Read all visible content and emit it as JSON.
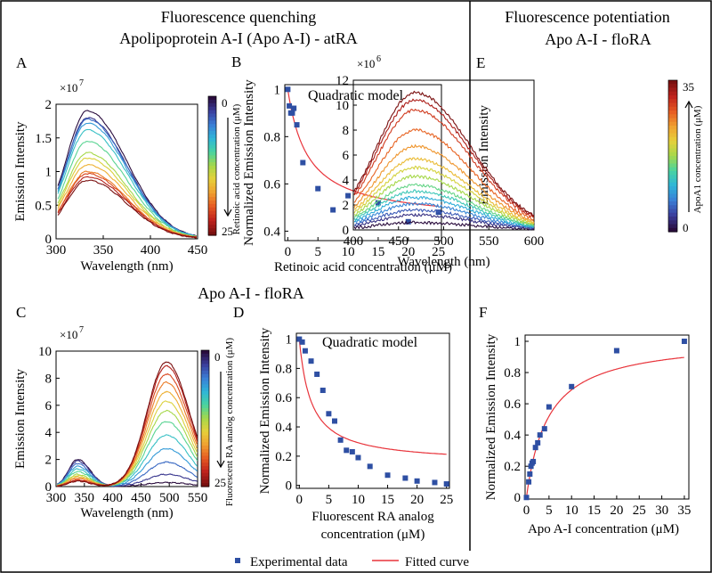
{
  "headers": {
    "left_line1": "Fluorescence quenching",
    "left_line2": "Apolipoprotein A-I (Apo A-I) - atRA",
    "right_line1": "Fluorescence potentiation",
    "right_line2": "Apo A-I - floRA",
    "middle": "Apo A-I - floRA"
  },
  "legend": {
    "experimental": "Experimental data",
    "fitted": "Fitted curve"
  },
  "colors": {
    "experimental": "#2e4fa3",
    "fitted": "#e8333a",
    "colormap": [
      "#2a0c3d",
      "#3b3f9e",
      "#3b7fd6",
      "#2fb6d8",
      "#49d3a0",
      "#a6d84a",
      "#e6d03a",
      "#f0a030",
      "#e65a22",
      "#c0231d",
      "#7a1010"
    ]
  },
  "chart_data": [
    {
      "id": "A",
      "type": "line",
      "panel_label": "A",
      "xlabel": "Wavelength (nm)",
      "ylabel": "Emission Intensity",
      "multiplier": "×10",
      "multiplier_exp": "7",
      "xlim": [
        300,
        450
      ],
      "ylim": [
        0,
        2
      ],
      "xticks": [
        300,
        350,
        400,
        450
      ],
      "yticks": [
        0,
        0.5,
        1,
        1.5,
        2
      ],
      "ytick_labels": [
        "0",
        "0.5",
        "1",
        "1.5",
        "2"
      ],
      "peak_x": 333,
      "peaks": [
        1.9,
        1.8,
        1.78,
        1.72,
        1.62,
        1.45,
        1.28,
        1.2,
        1.1,
        1.0,
        0.97,
        0.92,
        0.87
      ],
      "colorbar": {
        "label": "Retinoic acid concentration (μM)",
        "min_label": "0",
        "max_label": "25",
        "arrow": "down"
      }
    },
    {
      "id": "B",
      "type": "scatter",
      "panel_label": "B",
      "title": "Quadratic model",
      "xlabel": "Retinoic acid concentration (μM)",
      "ylabel": "Normalized Emission Intensity",
      "xlim": [
        -0.5,
        25.5
      ],
      "ylim": [
        0.36,
        1.02
      ],
      "xticks": [
        0,
        5,
        10,
        15,
        20,
        25
      ],
      "yticks": [
        0.4,
        0.6,
        0.8,
        1
      ],
      "ytick_labels": [
        "0.4",
        "0.6",
        "0.8",
        "1"
      ],
      "x": [
        0,
        0.25,
        0.5,
        0.75,
        1,
        1.5,
        2.5,
        5,
        7.5,
        10,
        15,
        20,
        25
      ],
      "y": [
        1.0,
        0.93,
        0.9,
        0.9,
        0.92,
        0.85,
        0.69,
        0.58,
        0.49,
        0.55,
        0.52,
        0.44,
        0.48
      ],
      "fit": {
        "ymin": 0.44,
        "k": 3.3
      }
    },
    {
      "id": "C",
      "type": "line",
      "panel_label": "C",
      "xlabel": "Wavelength (nm)",
      "ylabel": "Emission Intensity",
      "multiplier": "×10",
      "multiplier_exp": "7",
      "xlim": [
        300,
        550
      ],
      "ylim": [
        0,
        10
      ],
      "xticks": [
        300,
        350,
        400,
        450,
        500,
        550
      ],
      "yticks": [
        0,
        2,
        4,
        6,
        8,
        10
      ],
      "ytick_labels": [
        "0",
        "2",
        "4",
        "6",
        "8",
        "10"
      ],
      "peak1_x": 338,
      "peak2_x": 495,
      "peaks1": [
        2.0,
        1.9,
        1.7,
        1.5,
        1.3,
        1.1,
        0.9,
        0.8,
        0.7,
        0.6,
        0.5,
        0.45,
        0.4
      ],
      "peaks2": [
        0.3,
        0.9,
        1.8,
        2.8,
        3.8,
        4.8,
        5.6,
        6.3,
        7.0,
        7.7,
        8.3,
        8.9,
        9.2
      ],
      "colorbar": {
        "label": "Fluorescent RA analog concentration (μM)",
        "min_label": "0",
        "max_label": "25",
        "arrow": "down"
      }
    },
    {
      "id": "D",
      "type": "scatter",
      "panel_label": "D",
      "title": "Quadratic model",
      "xlabel": "Fluorescent RA analog",
      "xlabel2": "concentration (μM)",
      "ylabel": "Normalized Emission Intensity",
      "xlim": [
        -0.5,
        25.5
      ],
      "ylim": [
        -0.02,
        1.04
      ],
      "xticks": [
        0,
        5,
        10,
        15,
        20,
        25
      ],
      "yticks": [
        0,
        0.2,
        0.4,
        0.6,
        0.8,
        1
      ],
      "ytick_labels": [
        "0",
        "0.2",
        "0.4",
        "0.6",
        "0.8",
        "1"
      ],
      "x": [
        0,
        0.5,
        1,
        2,
        3,
        4,
        5,
        6,
        7,
        8,
        9,
        10,
        12,
        15,
        18,
        20,
        23,
        25
      ],
      "y": [
        1.0,
        0.98,
        0.92,
        0.85,
        0.76,
        0.65,
        0.49,
        0.44,
        0.31,
        0.24,
        0.23,
        0.19,
        0.13,
        0.07,
        0.05,
        0.03,
        0.02,
        0.01
      ],
      "fit": {
        "ymin": 0.15,
        "k": 2.0
      }
    },
    {
      "id": "E",
      "type": "line",
      "panel_label": "E",
      "xlabel": "Wavelength (nm)",
      "ylabel": "Emission Intensity",
      "multiplier": "×10",
      "multiplier_exp": "6",
      "xlim": [
        400,
        600
      ],
      "ylim": [
        0,
        12
      ],
      "xticks": [
        400,
        450,
        500,
        550,
        600
      ],
      "yticks": [
        0,
        2,
        4,
        6,
        8,
        10,
        12
      ],
      "ytick_labels": [
        "0",
        "2",
        "4",
        "6",
        "8",
        "10",
        "12"
      ],
      "peak_x": 468,
      "peaks": [
        0.6,
        1.2,
        1.6,
        2.1,
        2.6,
        3.1,
        3.6,
        4.3,
        5.0,
        5.7,
        6.7,
        8.0,
        9.6,
        10.4,
        11.0
      ],
      "colorbar": {
        "label": "ApoA1 concentration (μM)",
        "min_label": "0",
        "max_label": "35",
        "arrow": "up"
      }
    },
    {
      "id": "F",
      "type": "scatter",
      "panel_label": "F",
      "xlabel": "Apo A-I concentration (μM)",
      "ylabel": "Normalized Emission Intensity",
      "xlim": [
        -0.3,
        36
      ],
      "ylim": [
        -0.01,
        1.04
      ],
      "xticks": [
        0,
        5,
        10,
        15,
        20,
        25,
        30,
        35
      ],
      "yticks": [
        0,
        0.2,
        0.4,
        0.6,
        0.8,
        1
      ],
      "ytick_labels": [
        "0",
        "0.2",
        "0.4",
        "0.6",
        "0.8",
        "1"
      ],
      "x": [
        0,
        0.5,
        0.75,
        1,
        1.25,
        1.5,
        2,
        2.5,
        3,
        4,
        5,
        10,
        20,
        35
      ],
      "y": [
        0.0,
        0.1,
        0.15,
        0.2,
        0.22,
        0.23,
        0.32,
        0.35,
        0.4,
        0.44,
        0.58,
        0.71,
        0.94,
        1.0
      ],
      "fit": {
        "ymax": 1.02,
        "k": 4.8
      }
    }
  ]
}
